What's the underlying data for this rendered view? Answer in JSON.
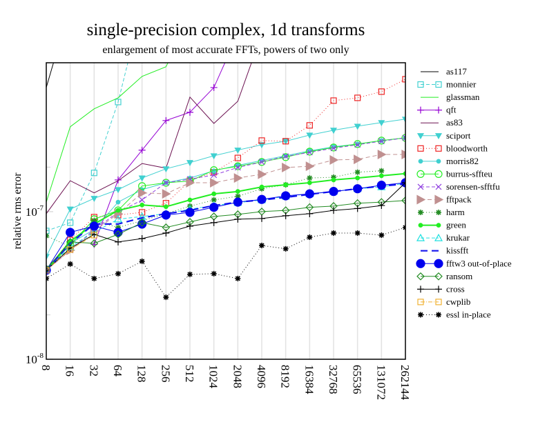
{
  "chart_data": {
    "type": "line",
    "title": "single-precision complex, 1d transforms",
    "subtitle": "enlargement of most accurate FFTs, powers of two only",
    "xlabel": "",
    "ylabel": "relative rms error",
    "xscale": "log2",
    "yscale": "log10",
    "ylim": [
      1e-08,
      1.02e-06
    ],
    "grid": "vertical lines at each x tick",
    "legend_position": "right, outside plot",
    "x": [
      8,
      16,
      32,
      64,
      128,
      256,
      512,
      1024,
      2048,
      4096,
      8192,
      16384,
      32768,
      65536,
      131072,
      262144
    ],
    "x_tick_labels": [
      "8",
      "16",
      "32",
      "64",
      "128",
      "256",
      "512",
      "1024",
      "2048",
      "4096",
      "8192",
      "16384",
      "32768",
      "65536",
      "131072",
      "262144"
    ],
    "y_tick_labels": [
      {
        "value": 1e-08,
        "base": "10",
        "exp": "-8"
      },
      {
        "value": 1e-07,
        "base": "10",
        "exp": "-7"
      }
    ],
    "series": [
      {
        "name": "as117",
        "color": "#000000",
        "dash": "",
        "marker": "none",
        "width": 1,
        "values": [
          6.93e-07,
          2.5e-06,
          null,
          null,
          null,
          null,
          null,
          null,
          null,
          null,
          null,
          null,
          null,
          null,
          null,
          null
        ]
      },
      {
        "name": "monnier",
        "color": "#40d0d0",
        "dash": "5,3",
        "marker": "square",
        "width": 1,
        "values": [
          7.4e-08,
          8.42e-08,
          1.83e-07,
          5.53e-07,
          2.5e-06,
          null,
          null,
          null,
          null,
          null,
          null,
          null,
          null,
          null,
          null,
          null
        ]
      },
      {
        "name": "glassman",
        "color": "#22ee22",
        "dash": "",
        "marker": "none",
        "width": 1,
        "values": [
          1.16e-07,
          3.76e-07,
          4.97e-07,
          5.9e-07,
          8.24e-07,
          9.58e-07,
          2e-06,
          null,
          null,
          null,
          null,
          null,
          null,
          null,
          null,
          null
        ]
      },
      {
        "name": "qft",
        "color": "#9400d3",
        "dash": "",
        "marker": "plus",
        "width": 1,
        "values": [
          null,
          null,
          6e-08,
          1.64e-07,
          2.61e-07,
          4.14e-07,
          4.71e-07,
          6.93e-07,
          1.6e-06,
          null,
          null,
          null,
          null,
          null,
          null,
          null
        ]
      },
      {
        "name": "as83",
        "color": "#6b1050",
        "dash": "",
        "marker": "none",
        "width": 1,
        "values": [
          9.68e-08,
          1.62e-07,
          1.34e-07,
          1.62e-07,
          2.12e-07,
          1.97e-07,
          5.97e-07,
          3.96e-07,
          5.59e-07,
          1.6e-06,
          null,
          null,
          null,
          null,
          null,
          null
        ]
      },
      {
        "name": "sciport",
        "color": "#40d0d0",
        "dash": "",
        "marker": "triangle-down",
        "width": 1,
        "values": [
          4.97e-08,
          1.04e-07,
          1.23e-07,
          1.41e-07,
          1.69e-07,
          1.95e-07,
          2.15e-07,
          2.39e-07,
          2.61e-07,
          2.84e-07,
          3e-07,
          3.3e-07,
          3.56e-07,
          3.79e-07,
          4.01e-07,
          4.23e-07
        ]
      },
      {
        "name": "bloodworth",
        "color": "#ee2222",
        "dash": "1,3",
        "marker": "square",
        "width": 1,
        "values": [
          4.01e-08,
          6.43e-08,
          9.18e-08,
          9.48e-08,
          9.89e-08,
          1.14e-07,
          1.62e-07,
          1.85e-07,
          2.31e-07,
          3.03e-07,
          3e-07,
          3.84e-07,
          5.65e-07,
          5.9e-07,
          6.5e-07,
          7.89e-07
        ]
      },
      {
        "name": "morris82",
        "color": "#40d0d0",
        "dash": "",
        "marker": "dot",
        "width": 1,
        "values": [
          4.01e-08,
          6.1e-08,
          7.56e-08,
          1.16e-07,
          1.41e-07,
          1.57e-07,
          1.69e-07,
          1.89e-07,
          2.06e-07,
          2.22e-07,
          2.39e-07,
          2.58e-07,
          2.75e-07,
          2.87e-07,
          3.03e-07,
          3.16e-07
        ]
      },
      {
        "name": "burrus-sffteu",
        "color": "#22ee22",
        "dash": "",
        "marker": "circle-open",
        "width": 1,
        "values": [
          4.01e-08,
          5.97e-08,
          8.89e-08,
          1.02e-07,
          1.49e-07,
          1.57e-07,
          1.61e-07,
          1.91e-07,
          2.03e-07,
          2.17e-07,
          2.34e-07,
          2.55e-07,
          2.72e-07,
          2.87e-07,
          3.03e-07,
          3.16e-07
        ]
      },
      {
        "name": "sorensen-sfftfu",
        "color": "#9040e0",
        "dash": "5,3",
        "marker": "cross-x",
        "width": 1,
        "values": [
          4.01e-08,
          5.47e-08,
          7.56e-08,
          9.89e-08,
          1.2e-07,
          1.57e-07,
          1.66e-07,
          1.77e-07,
          1.99e-07,
          2.17e-07,
          2.37e-07,
          2.52e-07,
          2.69e-07,
          2.84e-07,
          3e-07,
          3.16e-07
        ]
      },
      {
        "name": "fftpack",
        "color": "#c09090",
        "dash": "6,4",
        "marker": "triangle-right",
        "width": 1,
        "values": [
          4.01e-08,
          5.47e-08,
          7.4e-08,
          9.68e-08,
          1.34e-07,
          1.32e-07,
          1.57e-07,
          1.57e-07,
          1.69e-07,
          1.79e-07,
          1.99e-07,
          2.03e-07,
          2.24e-07,
          2.26e-07,
          2.44e-07,
          2.44e-07
        ]
      },
      {
        "name": "harm",
        "color": "#228b22",
        "dash": "1,3",
        "marker": "star",
        "width": 1,
        "values": [
          6.86e-08,
          5.78e-08,
          8.69e-08,
          7.81e-08,
          8.69e-08,
          9.68e-08,
          1.09e-07,
          1.2e-07,
          1.27e-07,
          1.43e-07,
          1.52e-07,
          1.69e-07,
          1.71e-07,
          1.85e-07,
          1.89e-07,
          null
        ]
      },
      {
        "name": "green",
        "color": "#22ee22",
        "dash": "",
        "marker": "dot",
        "width": 2,
        "values": [
          4.01e-08,
          6.3e-08,
          8.24e-08,
          1.02e-07,
          1.11e-07,
          1.08e-07,
          1.2e-07,
          1.32e-07,
          1.37e-07,
          1.47e-07,
          1.52e-07,
          1.57e-07,
          1.64e-07,
          1.69e-07,
          1.75e-07,
          1.81e-07
        ]
      },
      {
        "name": "krukar",
        "color": "#20e0e0",
        "dash": "5,3",
        "marker": "triangle-up",
        "width": 1,
        "values": [
          4.01e-08,
          5.78e-08,
          7.24e-08,
          8.89e-08,
          9.27e-08,
          9.68e-08,
          1.04e-07,
          1.1e-07,
          1.15e-07,
          1.2e-07,
          1.27e-07,
          1.32e-07,
          1.37e-07,
          1.43e-07,
          1.47e-07,
          1.56e-07
        ]
      },
      {
        "name": "kissfft",
        "color": "#1515ee",
        "dash": "10,6",
        "marker": "none",
        "width": 2.2,
        "values": [
          4.01e-08,
          6.1e-08,
          8.24e-08,
          8.24e-08,
          9.08e-08,
          9.68e-08,
          1.02e-07,
          1.1e-07,
          1.16e-07,
          1.2e-07,
          1.25e-07,
          1.31e-07,
          1.37e-07,
          1.43e-07,
          1.49e-07,
          1.54e-07
        ]
      },
      {
        "name": "fftw3 out-of-place",
        "color": "#0000ee",
        "dash": "",
        "marker": "dot-large",
        "width": 1,
        "values": [
          4.01e-08,
          7.24e-08,
          7.98e-08,
          7.24e-08,
          8.24e-08,
          9.48e-08,
          9.89e-08,
          1.07e-07,
          1.16e-07,
          1.21e-07,
          1.28e-07,
          1.32e-07,
          1.37e-07,
          1.43e-07,
          1.51e-07,
          1.57e-07
        ]
      },
      {
        "name": "ransom",
        "color": "#228b22",
        "dash": "",
        "marker": "diamond-open",
        "width": 1,
        "values": [
          4.09e-08,
          6.23e-08,
          6.1e-08,
          7.01e-08,
          8.42e-08,
          7.81e-08,
          8.51e-08,
          9.27e-08,
          9.58e-08,
          1e-07,
          1.02e-07,
          1.07e-07,
          1.09e-07,
          1.14e-07,
          1.16e-07,
          1.19e-07
        ]
      },
      {
        "name": "cross",
        "color": "#000000",
        "dash": "",
        "marker": "plus",
        "width": 1,
        "values": [
          4.01e-08,
          5.65e-08,
          7.01e-08,
          6.23e-08,
          6.57e-08,
          7.16e-08,
          7.98e-08,
          8.42e-08,
          8.89e-08,
          8.98e-08,
          9.38e-08,
          9.68e-08,
          1.02e-07,
          1.05e-07,
          1.1e-07,
          1.57e-07
        ]
      },
      {
        "name": "cwplib",
        "color": "#f0b030",
        "dash": "6,2,1,2",
        "marker": "square",
        "width": 1,
        "values": [
          4.01e-08,
          5.53e-08,
          6.93e-08,
          null,
          null,
          null,
          null,
          null,
          null,
          null,
          null,
          null,
          null,
          null,
          null,
          null
        ]
      },
      {
        "name": "essl in-place",
        "color": "#000000",
        "dash": "1,3",
        "marker": "star",
        "width": 1,
        "values": [
          3.52e-08,
          4.42e-08,
          3.52e-08,
          3.8e-08,
          4.61e-08,
          2.63e-08,
          3.76e-08,
          3.8e-08,
          3.52e-08,
          5.9e-08,
          5.6e-08,
          6.71e-08,
          7.16e-08,
          7.16e-08,
          6.93e-08,
          7.81e-08
        ]
      }
    ]
  }
}
